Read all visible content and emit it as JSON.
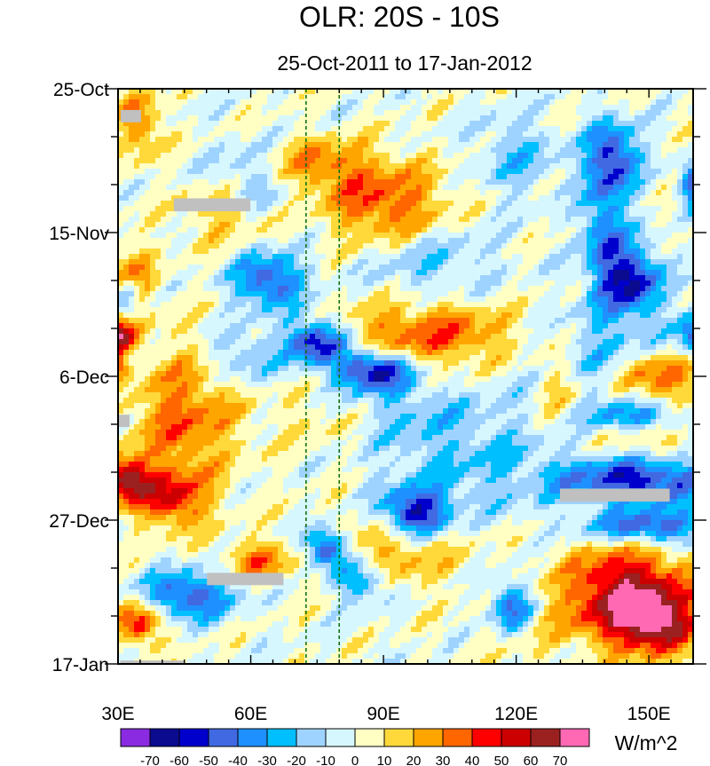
{
  "chart_data": {
    "type": "heatmap",
    "title": "OLR: 20S - 10S",
    "subtitle": "25-Oct-2011 to 17-Jan-2012",
    "xlabel": "",
    "ylabel": "",
    "units": "W/m^2",
    "xlim": [
      30,
      160
    ],
    "ylim_days": [
      0,
      84
    ],
    "x_ticks": [
      {
        "value": 30,
        "label": "30E"
      },
      {
        "value": 60,
        "label": "60E"
      },
      {
        "value": 90,
        "label": "90E"
      },
      {
        "value": 120,
        "label": "120E"
      },
      {
        "value": 150,
        "label": "150E"
      }
    ],
    "y_ticks": [
      {
        "day": 0,
        "label": "25-Oct"
      },
      {
        "day": 21,
        "label": "15-Nov"
      },
      {
        "day": 42,
        "label": "6-Dec"
      },
      {
        "day": 63,
        "label": "27-Dec"
      },
      {
        "day": 84,
        "label": "17-Jan"
      }
    ],
    "reference_lines_lon": [
      72.5,
      80
    ],
    "colorbar": {
      "levels": [
        -70,
        -60,
        -50,
        -40,
        -30,
        -20,
        -10,
        0,
        10,
        20,
        30,
        40,
        50,
        60,
        70
      ],
      "labels": [
        "-70",
        "-60",
        "-50",
        "-40",
        "-30",
        "-20",
        "-10",
        "0",
        "10",
        "20",
        "30",
        "40",
        "50",
        "60",
        "70"
      ],
      "colors": [
        "#8a2be2",
        "#0b0b8f",
        "#0000cd",
        "#4169e1",
        "#1e90ff",
        "#00bfff",
        "#9fd3ff",
        "#d7f7ff",
        "#ffffc4",
        "#ffd93a",
        "#ffa500",
        "#ff6600",
        "#ff0000",
        "#cc0000",
        "#9b2121",
        "#ff69b4"
      ]
    },
    "missing_color": "#c0c0c0",
    "features": [
      {
        "lon": 91,
        "day": 17,
        "sx": 14,
        "sy": 6,
        "amp": 40
      },
      {
        "lon": 152,
        "day": 42,
        "sx": 10,
        "sy": 3.5,
        "amp": 45
      },
      {
        "lon": 100,
        "day": 36,
        "sx": 22,
        "sy": 5,
        "amp": 38
      },
      {
        "lon": 45,
        "day": 48,
        "sx": 12,
        "sy": 10,
        "amp": 35
      },
      {
        "lon": 30,
        "day": 36,
        "sx": 4,
        "sy": 2,
        "amp": 65
      },
      {
        "lon": 32,
        "day": 57,
        "sx": 5,
        "sy": 3,
        "amp": 65
      },
      {
        "lon": 42,
        "day": 60,
        "sx": 8,
        "sy": 4,
        "amp": 45
      },
      {
        "lon": 145,
        "day": 74,
        "sx": 14,
        "sy": 7,
        "amp": 68
      },
      {
        "lon": 152,
        "day": 78,
        "sx": 9,
        "sy": 4,
        "amp": 50
      },
      {
        "lon": 62,
        "day": 69,
        "sx": 8,
        "sy": 3,
        "amp": 32
      },
      {
        "lon": 92,
        "day": 67,
        "sx": 16,
        "sy": 6,
        "amp": 25
      },
      {
        "lon": 35,
        "day": 5,
        "sx": 5,
        "sy": 5,
        "amp": 32
      },
      {
        "lon": 35,
        "day": 78,
        "sx": 5,
        "sy": 3,
        "amp": 50
      },
      {
        "lon": 78,
        "day": 48,
        "sx": 14,
        "sy": 5,
        "amp": 20
      },
      {
        "lon": 32,
        "day": 28,
        "sx": 6,
        "sy": 5,
        "amp": 35
      },
      {
        "lon": 75,
        "day": 11,
        "sx": 12,
        "sy": 4,
        "amp": 30
      },
      {
        "lon": 55,
        "day": 18,
        "sx": 10,
        "sy": 5,
        "amp": 25
      },
      {
        "lon": 150,
        "day": 50,
        "sx": 12,
        "sy": 5,
        "amp": 25
      },
      {
        "lon": 120,
        "day": 78,
        "sx": 7,
        "sy": 5,
        "amp": 20
      },
      {
        "lon": 30,
        "day": 40,
        "sx": 2,
        "sy": 2,
        "amp": 40
      },
      {
        "lon": 130,
        "day": 44,
        "sx": 6,
        "sy": 6,
        "amp": 25
      },
      {
        "lon": 140,
        "day": 22,
        "sx": 5,
        "sy": 10,
        "amp": -40
      },
      {
        "lon": 142,
        "day": 10,
        "sx": 6,
        "sy": 5,
        "amp": -50
      },
      {
        "lon": 147,
        "day": 28,
        "sx": 6,
        "sy": 5,
        "amp": -55
      },
      {
        "lon": 75,
        "day": 37,
        "sx": 7,
        "sy": 3.5,
        "amp": -65
      },
      {
        "lon": 88,
        "day": 41,
        "sx": 8,
        "sy": 3,
        "amp": -65
      },
      {
        "lon": 97,
        "day": 62,
        "sx": 8,
        "sy": 3.5,
        "amp": -65
      },
      {
        "lon": 77,
        "day": 67,
        "sx": 5,
        "sy": 3,
        "amp": -60
      },
      {
        "lon": 148,
        "day": 57,
        "sx": 18,
        "sy": 3.5,
        "amp": -60
      },
      {
        "lon": 150,
        "day": 64,
        "sx": 14,
        "sy": 2.5,
        "amp": -52
      },
      {
        "lon": 148,
        "day": 48,
        "sx": 12,
        "sy": 2.5,
        "amp": -45
      },
      {
        "lon": 119,
        "day": 76,
        "sx": 5,
        "sy": 4,
        "amp": -60
      },
      {
        "lon": 46,
        "day": 74,
        "sx": 10,
        "sy": 3.5,
        "amp": -50
      },
      {
        "lon": 64,
        "day": 28,
        "sx": 8,
        "sy": 4,
        "amp": -50
      },
      {
        "lon": 85,
        "day": 72,
        "sx": 6,
        "sy": 3,
        "amp": -40
      },
      {
        "lon": 60,
        "day": 14,
        "sx": 10,
        "sy": 6,
        "amp": -25
      },
      {
        "lon": 160,
        "day": 14,
        "sx": 3,
        "sy": 3,
        "amp": -50
      },
      {
        "lon": 160,
        "day": 36,
        "sx": 3,
        "sy": 3,
        "amp": -45
      },
      {
        "lon": 32,
        "day": 30,
        "sx": 3,
        "sy": 3,
        "amp": -45
      },
      {
        "lon": 138,
        "day": 40,
        "sx": 18,
        "sy": 8,
        "amp": -22
      },
      {
        "lon": 110,
        "day": 55,
        "sx": 20,
        "sy": 8,
        "amp": -18
      },
      {
        "lon": 100,
        "day": 25,
        "sx": 15,
        "sy": 6,
        "amp": -20
      },
      {
        "lon": 58,
        "day": 39,
        "sx": 8,
        "sy": 4,
        "amp": -25
      },
      {
        "lon": 90,
        "day": 47,
        "sx": 20,
        "sy": 6,
        "amp": -20
      },
      {
        "lon": 120,
        "day": 10,
        "sx": 10,
        "sy": 6,
        "amp": -20
      }
    ],
    "missing_regions": [
      {
        "lon0": 30.6,
        "lon1": 35.2,
        "day0": 3.1,
        "day1": 4.9
      },
      {
        "lon0": 42.6,
        "lon1": 59.9,
        "day0": 16.0,
        "day1": 17.9
      },
      {
        "lon0": 30.1,
        "lon1": 32.6,
        "day0": 47.6,
        "day1": 49.4
      },
      {
        "lon0": 129.9,
        "lon1": 154.7,
        "day0": 58.4,
        "day1": 60.3
      },
      {
        "lon0": 50.1,
        "lon1": 67.4,
        "day0": 70.7,
        "day1": 72.5
      },
      {
        "lon0": 30.5,
        "lon1": 45.0,
        "day0": 83.5,
        "day1": 84.0
      }
    ]
  }
}
